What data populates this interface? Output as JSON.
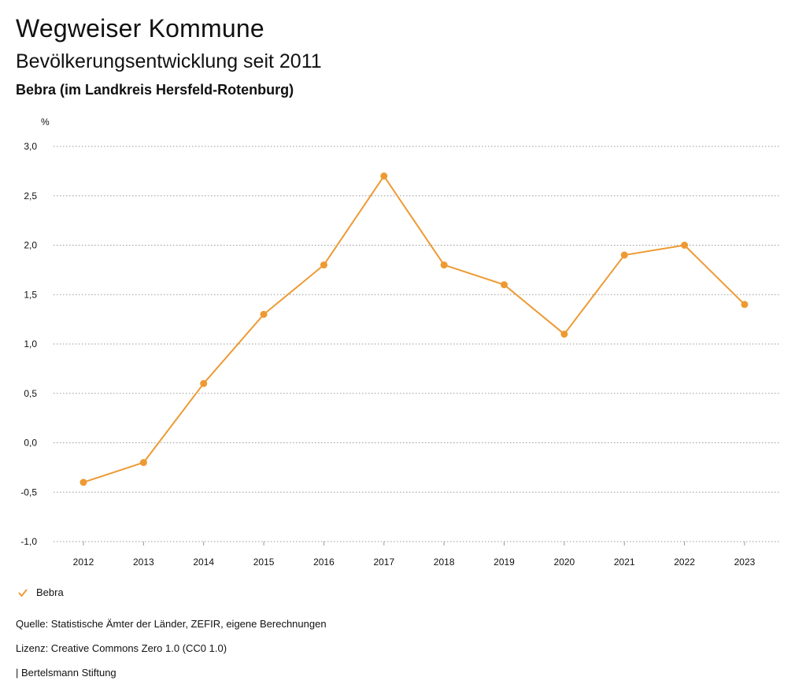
{
  "header": {
    "title": "Wegweiser Kommune",
    "subtitle": "Bevölkerungsentwicklung seit 2011",
    "region": "Bebra (im Landkreis Hersfeld-Rotenburg)"
  },
  "chart_data": {
    "type": "line",
    "ylabel": "%",
    "ylim": [
      -1.0,
      3.0
    ],
    "yticks": [
      -1.0,
      -0.5,
      0.0,
      0.5,
      1.0,
      1.5,
      2.0,
      2.5,
      3.0
    ],
    "ytick_labels": [
      "-1,0",
      "-0,5",
      "0,0",
      "0,5",
      "1,0",
      "1,5",
      "2,0",
      "2,5",
      "3,0"
    ],
    "categories": [
      "2012",
      "2013",
      "2014",
      "2015",
      "2016",
      "2017",
      "2018",
      "2019",
      "2020",
      "2021",
      "2022",
      "2023"
    ],
    "series": [
      {
        "name": "Bebra",
        "color": "#ed9a33",
        "values": [
          -0.4,
          -0.2,
          0.6,
          1.3,
          1.8,
          2.7,
          1.8,
          1.6,
          1.1,
          1.9,
          2.0,
          1.4
        ]
      }
    ],
    "grid": true,
    "legend": "bottom-left"
  },
  "legend": {
    "label": "Bebra",
    "color": "#ed9a33"
  },
  "footer": {
    "source": "Quelle: Statistische Ämter der Länder, ZEFIR, eigene Berechnungen",
    "license": "Lizenz: Creative Commons Zero 1.0 (CC0 1.0)",
    "publisher": "| Bertelsmann Stiftung"
  }
}
